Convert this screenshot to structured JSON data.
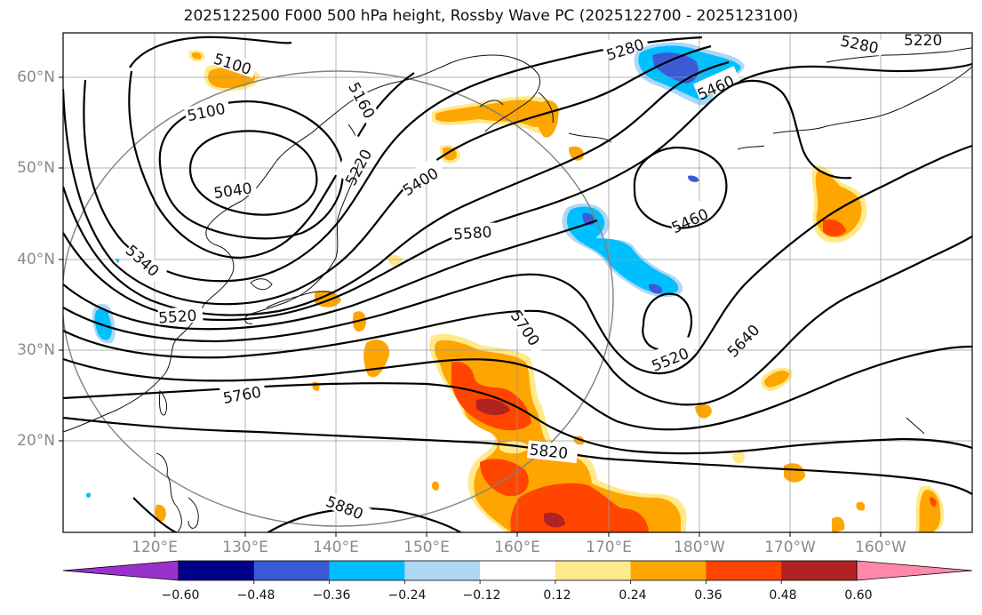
{
  "title": "2025122500 F000 500 hPa height, Rossby Wave PC (2025122700 - 2025123100)",
  "latitude_labels": [
    "60°N",
    "50°N",
    "40°N",
    "30°N",
    "20°N"
  ],
  "longitude_labels": [
    "120°E",
    "130°E",
    "140°E",
    "150°E",
    "160°E",
    "170°E",
    "180°W",
    "170°W",
    "160°W"
  ],
  "contour_labels": [
    "5100",
    "5100",
    "5160",
    "5040",
    "5220",
    "5280",
    "5280",
    "5220",
    "5460",
    "5460",
    "5400",
    "5340",
    "5580",
    "5520",
    "5700",
    "5520",
    "5640",
    "5760",
    "5820",
    "5880"
  ],
  "colorbar": {
    "ticks": [
      "−0.60",
      "−0.48",
      "−0.36",
      "−0.24",
      "−0.12",
      "0.12",
      "0.24",
      "0.36",
      "0.48",
      "0.60"
    ],
    "colors": [
      "#9932cc",
      "#00008b",
      "#3b5bd6",
      "#00bfff",
      "#add8f5",
      "#ffffff",
      "#ffe98a",
      "#ffa500",
      "#ff4500",
      "#b22222",
      "#ff88aa"
    ]
  }
}
